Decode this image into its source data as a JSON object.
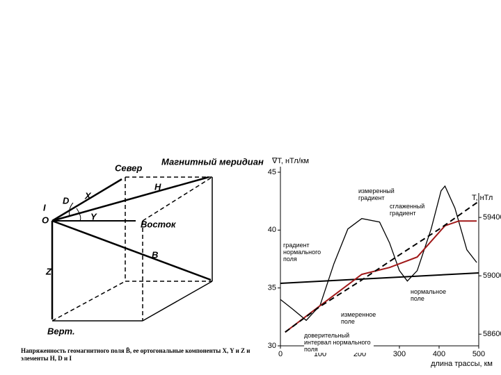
{
  "diagram": {
    "labels": {
      "north": "Север",
      "meridian": "Магнитный меридиан",
      "east": "Восток",
      "vert": "Верт.",
      "x": "X",
      "y": "Y",
      "z": "Z",
      "h": "H",
      "b": "B",
      "d": "D",
      "i": "I",
      "o": "O"
    },
    "caption": "Напряженность геомагнитного поля B̄, ее ортогональные компоненты X, Y и Z и элементы H, D и I"
  },
  "chart_data": {
    "type": "line",
    "ylabel": "∇T, нТл/км",
    "y2label": "T, нТл",
    "xlabel": "длина трассы, км",
    "xlim": [
      0,
      500
    ],
    "xticks": [
      0,
      100,
      200,
      300,
      400,
      500
    ],
    "ylim": [
      30,
      45
    ],
    "yticks": [
      30,
      35,
      40,
      45
    ],
    "y2lim": [
      58520,
      59710
    ],
    "y2ticks": [
      58600,
      59000,
      59400
    ],
    "series": [
      {
        "name": "измеренный градиент",
        "color": "#000000",
        "x": [
          0,
          30,
          65,
          100,
          135,
          170,
          205,
          250,
          275,
          300,
          320,
          345,
          380,
          405,
          415,
          440,
          470,
          495
        ],
        "values": [
          34.0,
          33.2,
          32.2,
          33.5,
          37.1,
          40.1,
          41.0,
          40.7,
          38.9,
          36.5,
          35.6,
          36.5,
          40.1,
          43.4,
          43.8,
          41.9,
          38.3,
          37.2
        ]
      },
      {
        "name": "градиент нормального поля",
        "color": "#000000",
        "x": [
          0,
          500
        ],
        "values": [
          35.4,
          36.3
        ]
      },
      {
        "name": "нормальное поле",
        "color": "#a01818",
        "axis": "y2",
        "x": [
          12,
          100,
          205,
          275,
          345,
          415,
          450,
          495
        ],
        "values": [
          58614,
          58795,
          59010,
          59057,
          59129,
          59343,
          59376,
          59376
        ]
      },
      {
        "name": "измеренное поле",
        "color": "#000000",
        "axis": "y2",
        "dashed": true,
        "x": [
          12,
          100,
          200,
          300,
          400,
          500
        ],
        "values": [
          58614,
          58790,
          58962,
          59143,
          59319,
          59510
        ]
      }
    ],
    "annotations": [
      "сглаженный градиент",
      "доверительный интервал нормального поля"
    ]
  }
}
